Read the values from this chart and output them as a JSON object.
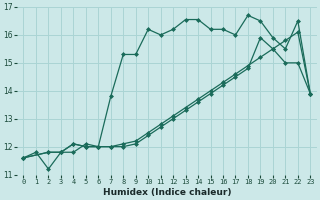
{
  "xlabel": "Humidex (Indice chaleur)",
  "bg_color": "#cce8e8",
  "grid_color": "#aad4d4",
  "line_color": "#1a6b5a",
  "xlim": [
    -0.5,
    23.5
  ],
  "ylim": [
    11,
    17
  ],
  "yticks": [
    11,
    12,
    13,
    14,
    15,
    16,
    17
  ],
  "xticks": [
    0,
    1,
    2,
    3,
    4,
    5,
    6,
    7,
    8,
    9,
    10,
    11,
    12,
    13,
    14,
    15,
    16,
    17,
    18,
    19,
    20,
    21,
    22,
    23
  ],
  "series1_x": [
    0,
    1,
    2,
    3,
    4,
    5,
    6,
    7,
    8,
    9,
    10,
    11,
    12,
    13,
    14,
    15,
    16,
    17,
    18,
    19,
    20,
    21,
    22,
    23
  ],
  "series1_y": [
    11.6,
    11.8,
    11.2,
    11.8,
    11.8,
    12.1,
    12.0,
    13.8,
    15.3,
    15.3,
    16.2,
    16.0,
    16.2,
    16.55,
    16.55,
    16.2,
    16.2,
    16.0,
    16.7,
    16.5,
    15.9,
    15.5,
    16.5,
    13.9
  ],
  "series2_x": [
    0,
    2,
    3,
    4,
    5,
    6,
    7,
    8,
    9,
    10,
    11,
    12,
    13,
    14,
    15,
    16,
    17,
    18,
    19,
    20,
    21,
    22,
    23
  ],
  "series2_y": [
    11.6,
    11.8,
    11.8,
    12.1,
    12.0,
    12.0,
    12.0,
    12.0,
    12.1,
    12.4,
    12.7,
    13.0,
    13.3,
    13.6,
    13.9,
    14.2,
    14.5,
    14.8,
    15.9,
    15.5,
    15.0,
    15.0,
    13.9
  ],
  "series3_x": [
    0,
    2,
    3,
    4,
    5,
    6,
    7,
    8,
    9,
    10,
    11,
    12,
    13,
    14,
    15,
    16,
    17,
    18,
    19,
    20,
    21,
    22,
    23
  ],
  "series3_y": [
    11.6,
    11.8,
    11.8,
    12.1,
    12.0,
    12.0,
    12.0,
    12.1,
    12.2,
    12.5,
    12.8,
    13.1,
    13.4,
    13.7,
    14.0,
    14.3,
    14.6,
    14.9,
    15.2,
    15.5,
    15.8,
    16.1,
    13.9
  ]
}
